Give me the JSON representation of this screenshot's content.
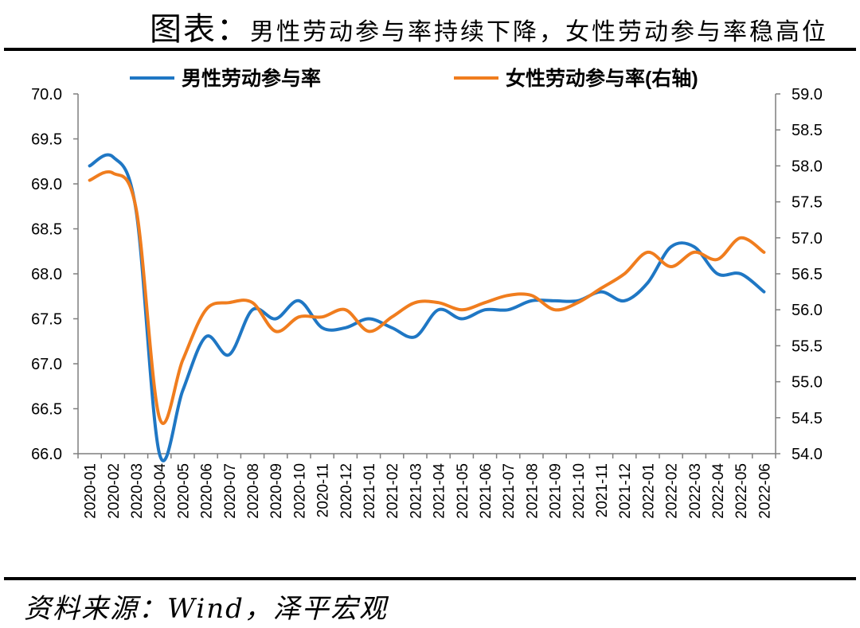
{
  "header": {
    "prefix": "图表：",
    "title": "男性劳动参与率持续下降，女性劳动参与率稳高位"
  },
  "footer": {
    "source": "资料来源：Wind，泽平宏观"
  },
  "colors": {
    "male": "#1F77C4",
    "female": "#F07D1E",
    "axis": "#7f7f7f"
  },
  "chart_data": {
    "type": "line",
    "title": "男性劳动参与率持续下降，女性劳动参与率稳高位",
    "x": [
      "2020-01",
      "2020-02",
      "2020-03",
      "2020-04",
      "2020-05",
      "2020-06",
      "2020-07",
      "2020-08",
      "2020-09",
      "2020-10",
      "2020-11",
      "2020-12",
      "2021-01",
      "2021-02",
      "2021-03",
      "2021-04",
      "2021-05",
      "2021-06",
      "2021-07",
      "2021-08",
      "2021-09",
      "2021-10",
      "2021-11",
      "2021-12",
      "2022-01",
      "2022-02",
      "2022-03",
      "2022-04",
      "2022-05",
      "2022-06"
    ],
    "y_left": {
      "min": 66.0,
      "max": 70.0,
      "ticks": [
        "66.0",
        "66.5",
        "67.0",
        "67.5",
        "68.0",
        "68.5",
        "69.0",
        "69.5",
        "70.0"
      ]
    },
    "y_right": {
      "min": 54.0,
      "max": 59.0,
      "ticks": [
        "54.0",
        "54.5",
        "55.0",
        "55.5",
        "56.0",
        "56.5",
        "57.0",
        "57.5",
        "58.0",
        "58.5",
        "59.0"
      ]
    },
    "legend_position": "top",
    "series": [
      {
        "name": "男性劳动参与率",
        "axis": "left",
        "values": [
          69.2,
          69.3,
          68.7,
          66.0,
          66.7,
          67.3,
          67.1,
          67.6,
          67.5,
          67.7,
          67.4,
          67.4,
          67.5,
          67.4,
          67.3,
          67.6,
          67.5,
          67.6,
          67.6,
          67.7,
          67.7,
          67.7,
          67.8,
          67.7,
          67.9,
          68.3,
          68.3,
          68.0,
          68.0,
          67.8
        ]
      },
      {
        "name": "女性劳动参与率(右轴)",
        "axis": "right",
        "values": [
          57.8,
          57.9,
          57.4,
          54.5,
          55.3,
          56.0,
          56.1,
          56.1,
          55.7,
          55.9,
          55.9,
          56.0,
          55.7,
          55.9,
          56.1,
          56.1,
          56.0,
          56.1,
          56.2,
          56.2,
          56.0,
          56.1,
          56.3,
          56.5,
          56.8,
          56.6,
          56.8,
          56.7,
          57.0,
          56.8
        ]
      }
    ]
  }
}
